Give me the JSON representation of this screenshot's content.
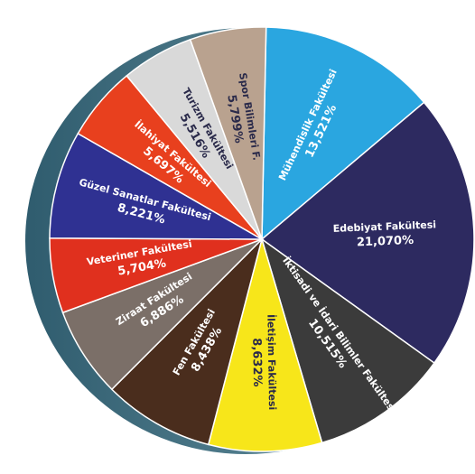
{
  "chart_data": {
    "type": "pie",
    "categories": [
      "Mühendislik Fakültesi",
      "Edebiyat Fakültesi",
      "İktisadi ve İdari Bilimler Fakültesi",
      "İletişim Fakültesi",
      "Fen Fakültesi",
      "Ziraat Fakültesi",
      "Veteriner Fakültesi",
      "Güzel Sanatlar Fakültesi",
      "İlahiyat Fakültesi",
      "Turizm Fakültesi",
      "Spor Bilimleri F."
    ],
    "values": [
      13.521,
      21.07,
      10.515,
      8.632,
      8.438,
      6.886,
      5.704,
      8.221,
      5.697,
      5.516,
      5.799
    ],
    "value_labels": [
      "13,521%",
      "21,070%",
      "10,515%",
      "8,632%",
      "8,438%",
      "6,886%",
      "5,704%",
      "8,221%",
      "5,697%",
      "5,516%",
      "5,799%"
    ],
    "colors": [
      "#2aa6e0",
      "#2d2a60",
      "#3b3b3b",
      "#f7e61a",
      "#4a2d1d",
      "#7b6f68",
      "#e0301e",
      "#2f3192",
      "#e8401e",
      "#d9d9d9",
      "#b9a28f"
    ]
  }
}
